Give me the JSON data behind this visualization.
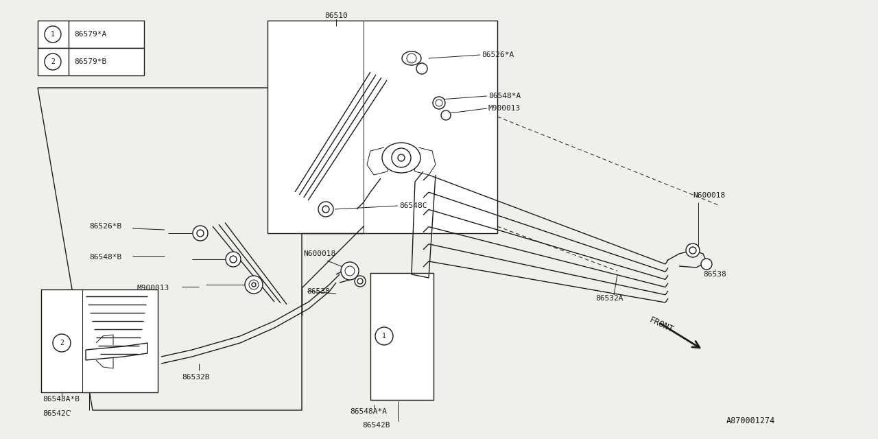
{
  "bg_color": "#f0f0eb",
  "line_color": "#1a1a1a",
  "fig_width": 12.8,
  "fig_height": 6.4,
  "dpi": 100,
  "legend": [
    {
      "num": "1",
      "code": "86579*A"
    },
    {
      "num": "2",
      "code": "86579*B"
    }
  ],
  "diagram_id": "A870001274"
}
